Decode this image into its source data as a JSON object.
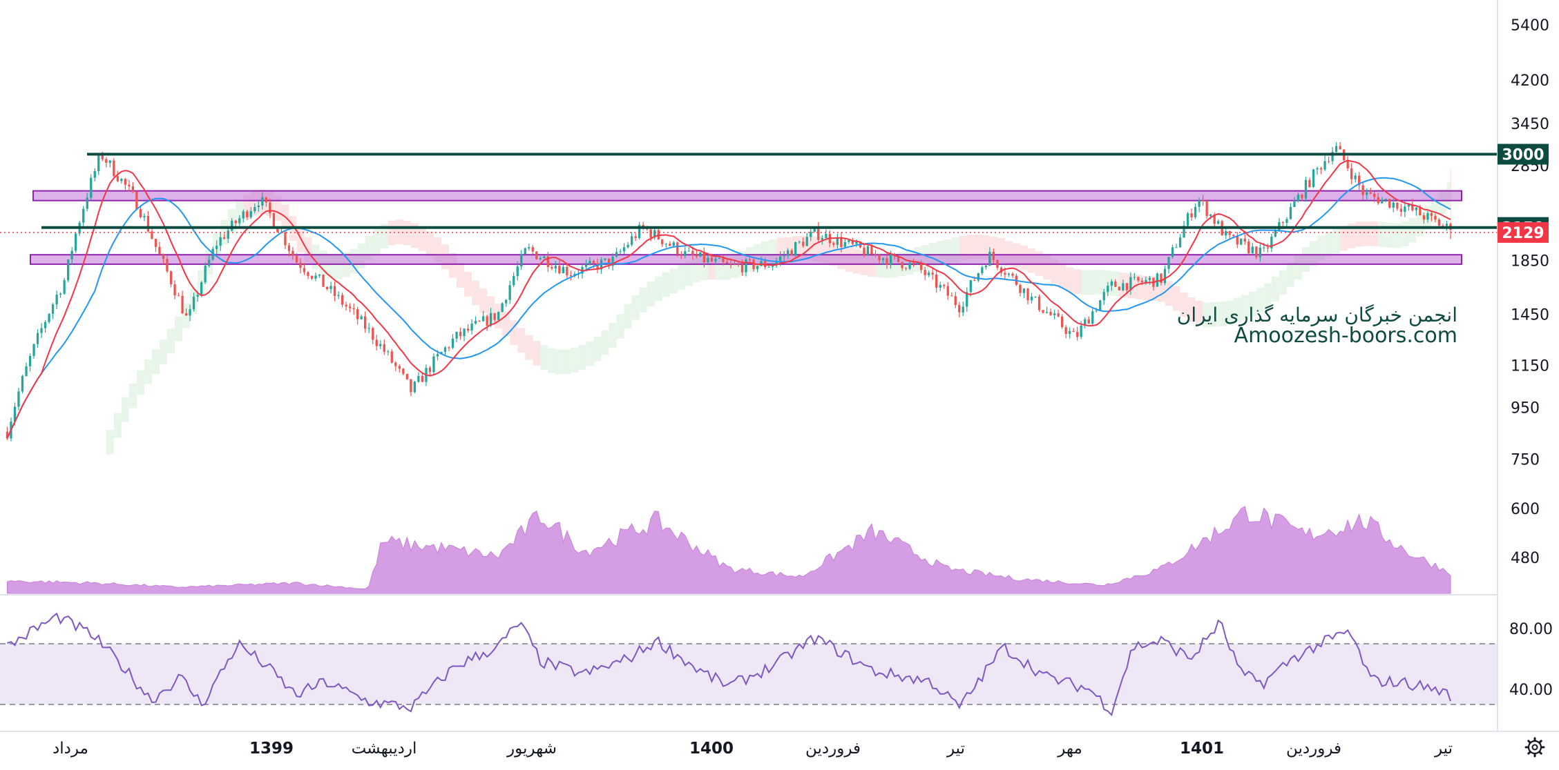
{
  "chart_data": {
    "type": "candlestick",
    "price_axis": {
      "scale": "log",
      "ticks": [
        480,
        600,
        750,
        950,
        1150,
        1450,
        1850,
        2850,
        3450,
        4200,
        5400
      ],
      "tick_labels": [
        "480",
        "600",
        "750",
        "950",
        "1150",
        "1450",
        "1850",
        "2850",
        "3450",
        "4200",
        "5400"
      ]
    },
    "time_axis": {
      "labels": [
        {
          "text": "مرداد",
          "bold": false
        },
        {
          "text": "1399",
          "bold": true
        },
        {
          "text": "اردیبهشت",
          "bold": false
        },
        {
          "text": "شهریور",
          "bold": false
        },
        {
          "text": "1400",
          "bold": true
        },
        {
          "text": "فروردین",
          "bold": false
        },
        {
          "text": "تیر",
          "bold": false
        },
        {
          "text": "مهر",
          "bold": false
        },
        {
          "text": "1401",
          "bold": true
        },
        {
          "text": "فروردین",
          "bold": false
        },
        {
          "text": "تیر",
          "bold": false
        }
      ]
    },
    "price_path": [
      {
        "t": 0.0,
        "p": 850
      },
      {
        "t": 0.04,
        "p": 1700
      },
      {
        "t": 0.065,
        "p": 3000
      },
      {
        "t": 0.09,
        "p": 2400
      },
      {
        "t": 0.105,
        "p": 1900
      },
      {
        "t": 0.125,
        "p": 1400
      },
      {
        "t": 0.145,
        "p": 2000
      },
      {
        "t": 0.175,
        "p": 2450
      },
      {
        "t": 0.2,
        "p": 1850
      },
      {
        "t": 0.225,
        "p": 1600
      },
      {
        "t": 0.25,
        "p": 1350
      },
      {
        "t": 0.28,
        "p": 1020
      },
      {
        "t": 0.31,
        "p": 1300
      },
      {
        "t": 0.34,
        "p": 1450
      },
      {
        "t": 0.36,
        "p": 1950
      },
      {
        "t": 0.39,
        "p": 1750
      },
      {
        "t": 0.42,
        "p": 1850
      },
      {
        "t": 0.44,
        "p": 2150
      },
      {
        "t": 0.47,
        "p": 1900
      },
      {
        "t": 0.5,
        "p": 1800
      },
      {
        "t": 0.53,
        "p": 1820
      },
      {
        "t": 0.56,
        "p": 2100
      },
      {
        "t": 0.6,
        "p": 1900
      },
      {
        "t": 0.63,
        "p": 1800
      },
      {
        "t": 0.66,
        "p": 1500
      },
      {
        "t": 0.68,
        "p": 1900
      },
      {
        "t": 0.71,
        "p": 1550
      },
      {
        "t": 0.74,
        "p": 1300
      },
      {
        "t": 0.765,
        "p": 1650
      },
      {
        "t": 0.8,
        "p": 1700
      },
      {
        "t": 0.825,
        "p": 2450
      },
      {
        "t": 0.845,
        "p": 2050
      },
      {
        "t": 0.87,
        "p": 1900
      },
      {
        "t": 0.89,
        "p": 2350
      },
      {
        "t": 0.92,
        "p": 3100
      },
      {
        "t": 0.94,
        "p": 2500
      },
      {
        "t": 0.97,
        "p": 2350
      },
      {
        "t": 1.0,
        "p": 2129
      }
    ],
    "volume_profile": [
      {
        "t": 0.0,
        "v": 0.06
      },
      {
        "t": 0.06,
        "v": 0.05
      },
      {
        "t": 0.12,
        "v": 0.03
      },
      {
        "t": 0.2,
        "v": 0.05
      },
      {
        "t": 0.25,
        "v": 0.02
      },
      {
        "t": 0.26,
        "v": 0.25
      },
      {
        "t": 0.3,
        "v": 0.22
      },
      {
        "t": 0.34,
        "v": 0.18
      },
      {
        "t": 0.37,
        "v": 0.38
      },
      {
        "t": 0.4,
        "v": 0.2
      },
      {
        "t": 0.45,
        "v": 0.35
      },
      {
        "t": 0.5,
        "v": 0.12
      },
      {
        "t": 0.55,
        "v": 0.08
      },
      {
        "t": 0.6,
        "v": 0.3
      },
      {
        "t": 0.65,
        "v": 0.12
      },
      {
        "t": 0.7,
        "v": 0.07
      },
      {
        "t": 0.76,
        "v": 0.04
      },
      {
        "t": 0.8,
        "v": 0.12
      },
      {
        "t": 0.86,
        "v": 0.4
      },
      {
        "t": 0.9,
        "v": 0.28
      },
      {
        "t": 0.94,
        "v": 0.35
      },
      {
        "t": 0.97,
        "v": 0.2
      },
      {
        "t": 1.0,
        "v": 0.1
      }
    ],
    "rsi": {
      "levels": [
        30,
        70
      ],
      "tick_labels": [
        "80.00",
        "40.00"
      ],
      "ticks": [
        80,
        40
      ],
      "values": [
        {
          "t": 0.0,
          "v": 68
        },
        {
          "t": 0.02,
          "v": 80
        },
        {
          "t": 0.035,
          "v": 88
        },
        {
          "t": 0.06,
          "v": 75
        },
        {
          "t": 0.08,
          "v": 55
        },
        {
          "t": 0.1,
          "v": 33
        },
        {
          "t": 0.12,
          "v": 48
        },
        {
          "t": 0.135,
          "v": 30
        },
        {
          "t": 0.16,
          "v": 70
        },
        {
          "t": 0.18,
          "v": 55
        },
        {
          "t": 0.2,
          "v": 36
        },
        {
          "t": 0.22,
          "v": 45
        },
        {
          "t": 0.25,
          "v": 32
        },
        {
          "t": 0.28,
          "v": 28
        },
        {
          "t": 0.31,
          "v": 55
        },
        {
          "t": 0.34,
          "v": 68
        },
        {
          "t": 0.355,
          "v": 84
        },
        {
          "t": 0.37,
          "v": 58
        },
        {
          "t": 0.4,
          "v": 50
        },
        {
          "t": 0.43,
          "v": 60
        },
        {
          "t": 0.45,
          "v": 72
        },
        {
          "t": 0.48,
          "v": 52
        },
        {
          "t": 0.5,
          "v": 42
        },
        {
          "t": 0.53,
          "v": 55
        },
        {
          "t": 0.56,
          "v": 74
        },
        {
          "t": 0.6,
          "v": 52
        },
        {
          "t": 0.64,
          "v": 45
        },
        {
          "t": 0.66,
          "v": 28
        },
        {
          "t": 0.69,
          "v": 68
        },
        {
          "t": 0.72,
          "v": 48
        },
        {
          "t": 0.75,
          "v": 40
        },
        {
          "t": 0.765,
          "v": 26
        },
        {
          "t": 0.78,
          "v": 68
        },
        {
          "t": 0.8,
          "v": 72
        },
        {
          "t": 0.82,
          "v": 60
        },
        {
          "t": 0.84,
          "v": 84
        },
        {
          "t": 0.855,
          "v": 50
        },
        {
          "t": 0.87,
          "v": 44
        },
        {
          "t": 0.89,
          "v": 60
        },
        {
          "t": 0.91,
          "v": 70
        },
        {
          "t": 0.93,
          "v": 78
        },
        {
          "t": 0.945,
          "v": 46
        },
        {
          "t": 0.97,
          "v": 44
        },
        {
          "t": 0.99,
          "v": 40
        },
        {
          "t": 1.0,
          "v": 36
        }
      ]
    },
    "horizontal_lines": [
      {
        "price": 3000,
        "label": "3000",
        "color": "#0d4a40"
      },
      {
        "price": 2150,
        "label": "2150",
        "color": "#0d4a40"
      }
    ],
    "zones": [
      {
        "price_low": 2430,
        "price_high": 2540,
        "color": "#c77ddb"
      },
      {
        "price_low": 1820,
        "price_high": 1900,
        "color": "#c77ddb"
      }
    ],
    "last_price": {
      "value": 2129,
      "label": "2129",
      "color": "#f23645"
    },
    "colors": {
      "up": "#26a69a",
      "down": "#ef5350",
      "ma_fast": "#f23645",
      "ma_slow": "#2196f3",
      "cloud_bull": "#e8f5e9",
      "cloud_bear": "#fde4e4",
      "volume_area": "#c77ddb",
      "rsi_line": "#7e57c2",
      "rsi_band": "#ede7f6"
    }
  },
  "watermark": {
    "line1": "انجمن خبرگان سرمایه گذاری ایران",
    "line2": "Amoozesh-boors.com"
  },
  "icons": {
    "settings": "gear-icon"
  }
}
